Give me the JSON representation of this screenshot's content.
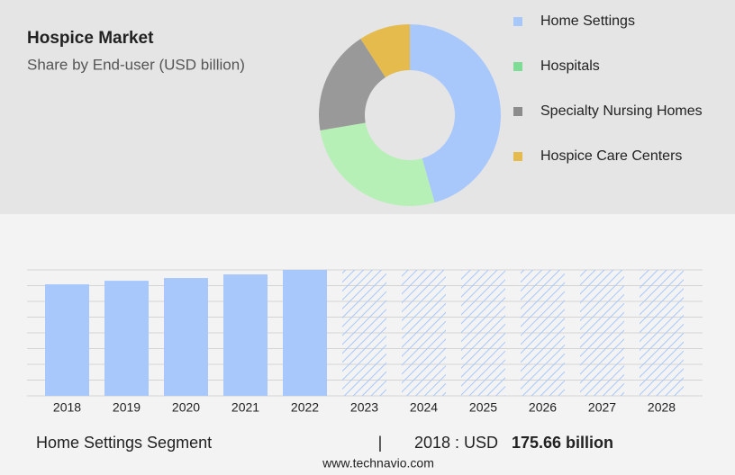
{
  "chart_data": [
    {
      "type": "pie",
      "donut": true,
      "title": "Hospice Market",
      "subtitle": "Share by End-user (USD billion)",
      "categories": [
        "Home Settings",
        "Hospitals",
        "Specialty Nursing Homes",
        "Hospice Care Centers"
      ],
      "values": [
        45.6,
        26.7,
        18.6,
        9.1
      ],
      "colors": [
        "#a8c8fc",
        "#b6f0b6",
        "#999999",
        "#e4bb4c"
      ],
      "legend_colors": [
        "#a8c8fc",
        "#7ddc96",
        "#8c8c8c",
        "#e4bb4c"
      ]
    },
    {
      "type": "bar",
      "categories": [
        "2018",
        "2019",
        "2020",
        "2021",
        "2022",
        "2023",
        "2024",
        "2025",
        "2026",
        "2027",
        "2028"
      ],
      "values": [
        175.66,
        181.3,
        185.6,
        191.3,
        198.4,
        null,
        null,
        null,
        null,
        null,
        null
      ],
      "color": "#a8c8fc",
      "ylim": [
        0,
        198.4
      ],
      "grid": true
    }
  ],
  "footer": {
    "segment": "Home Settings Segment",
    "separator": "|",
    "year_label": "2018 : USD",
    "value_label": "175.66 billion",
    "source": "www.technavio.com"
  }
}
